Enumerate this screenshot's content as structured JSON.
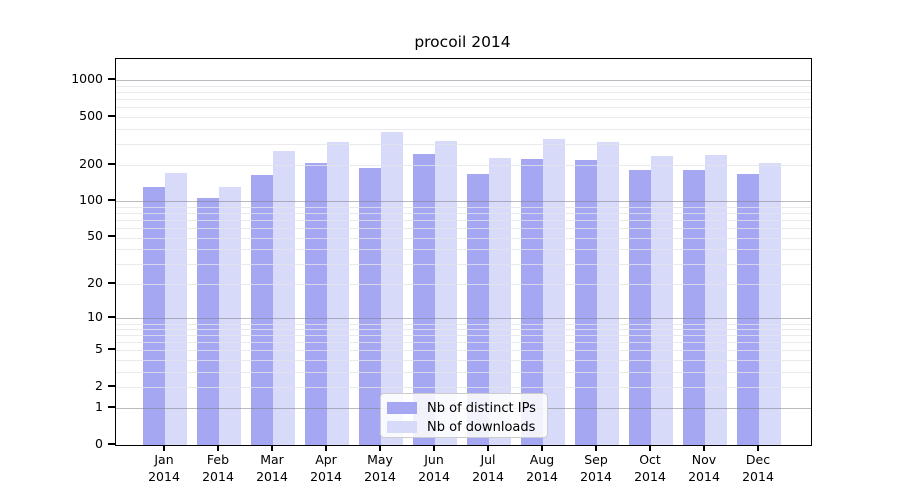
{
  "chart_data": {
    "type": "bar",
    "title": "procoil 2014",
    "year": "2014",
    "categories": [
      "Jan",
      "Feb",
      "Mar",
      "Apr",
      "May",
      "Jun",
      "Jul",
      "Aug",
      "Sep",
      "Oct",
      "Nov",
      "Dec"
    ],
    "series": [
      {
        "name": "Nb of distinct IPs",
        "color": "#a5a7f2",
        "values": [
          132,
          107,
          166,
          209,
          188,
          246,
          168,
          224,
          221,
          184,
          182,
          168
        ]
      },
      {
        "name": "Nb of downloads",
        "color": "#d8daf9",
        "values": [
          172,
          131,
          262,
          313,
          378,
          317,
          228,
          328,
          313,
          239,
          242,
          209
        ]
      }
    ],
    "yscale": "log1p",
    "ylim": [
      0,
      1500
    ],
    "yticks": [
      0,
      1,
      2,
      5,
      10,
      20,
      50,
      100,
      200,
      500,
      1000
    ],
    "major_gridlines": [
      1,
      10,
      100,
      1000
    ],
    "minor_gridlines": [
      2,
      3,
      4,
      5,
      6,
      7,
      8,
      9,
      20,
      30,
      40,
      50,
      60,
      70,
      80,
      90,
      200,
      300,
      400,
      500,
      600,
      700,
      800,
      900
    ],
    "legend": {
      "position": "lower center"
    },
    "colors": {
      "major_grid": "#b0b0b6",
      "minor_grid": "#e9e9ee",
      "axis": "#000000",
      "legend_border": "#cccccc",
      "legend_bg": "#ffffff"
    },
    "grid": "on",
    "xlabel": "",
    "ylabel": ""
  }
}
